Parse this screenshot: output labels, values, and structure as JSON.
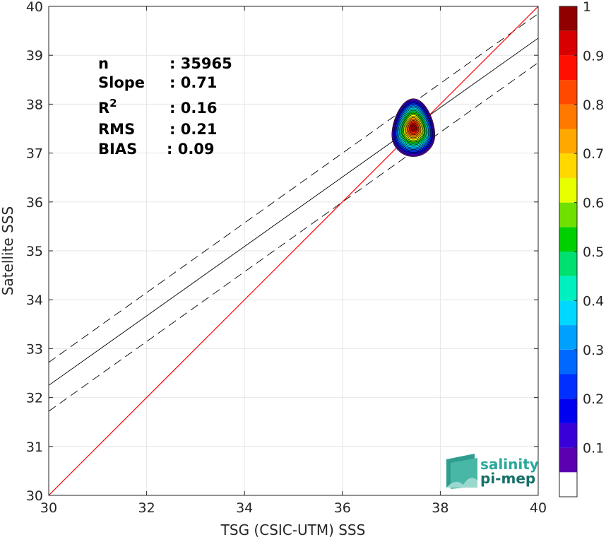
{
  "chart_data": {
    "type": "heatmap",
    "xlabel": "TSG (CSIC-UTM) SSS",
    "ylabel": "Satellite SSS",
    "xlim": [
      30,
      40
    ],
    "ylim": [
      30,
      40
    ],
    "x_ticks": [
      30,
      32,
      34,
      36,
      38,
      40
    ],
    "y_ticks": [
      30,
      31,
      32,
      33,
      34,
      35,
      36,
      37,
      38,
      39,
      40
    ],
    "grid": true,
    "reference_line": {
      "x": [
        30,
        40
      ],
      "y": [
        30,
        40
      ],
      "color": "#ff0000"
    },
    "fit_line": {
      "x": [
        30,
        40
      ],
      "y": [
        32.25,
        39.35
      ],
      "color": "#000000"
    },
    "fit_bounds": [
      {
        "x": [
          30,
          40
        ],
        "y": [
          32.72,
          39.85
        ],
        "style": "dashed"
      },
      {
        "x": [
          30,
          40
        ],
        "y": [
          31.72,
          38.85
        ],
        "style": "dashed"
      }
    ],
    "density_center": {
      "x": 37.45,
      "y": 37.52
    },
    "colorbar": {
      "ticks": [
        "0.1",
        "0.2",
        "0.3",
        "0.4",
        "0.5",
        "0.6",
        "0.7",
        "0.8",
        "0.9",
        "1"
      ],
      "levels": [
        0,
        0.05,
        0.1,
        0.15,
        0.2,
        0.25,
        0.3,
        0.35,
        0.4,
        0.45,
        0.5,
        0.55,
        0.6,
        0.65,
        0.7,
        0.75,
        0.8,
        0.85,
        0.9,
        0.95,
        1
      ],
      "colors": [
        "#ffffff",
        "#5a00b0",
        "#3a00d8",
        "#0000f0",
        "#0030ff",
        "#0068ff",
        "#00a0ff",
        "#00d8ff",
        "#00f0c0",
        "#00e070",
        "#00d000",
        "#70e000",
        "#e8ff00",
        "#ffd800",
        "#ffa800",
        "#ff7800",
        "#ff4800",
        "#ff1000",
        "#d80000",
        "#900000"
      ]
    },
    "stats": [
      {
        "label": "n",
        "value": ": 35965"
      },
      {
        "label": "Slope",
        "value": ": 0.71"
      },
      {
        "label": "R",
        "sup": "2",
        "value": ": 0.16"
      },
      {
        "label": "RMS",
        "value": ": 0.21"
      },
      {
        "label": "BIAS",
        "value": ": 0.09"
      }
    ]
  },
  "logo": {
    "line1": "salinity",
    "line2": "pi-mep"
  }
}
